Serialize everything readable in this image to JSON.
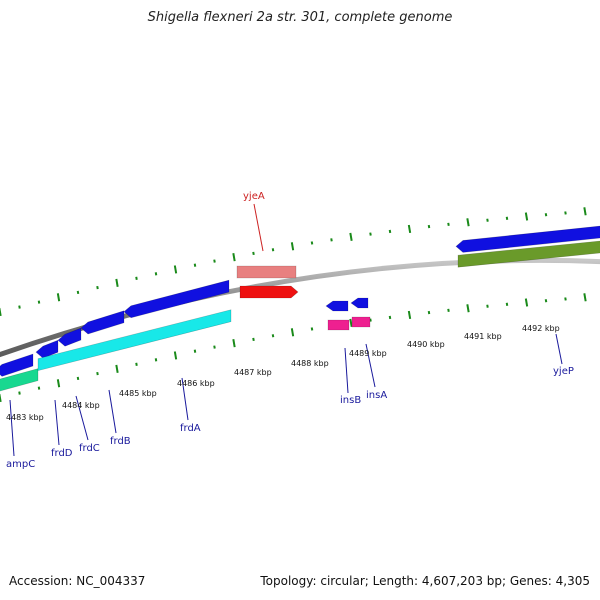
{
  "title": "Shigella flexneri 2a str. 301, complete genome",
  "footer": {
    "accession": "Accession: NC_004337",
    "summary": "Topology: circular; Length: 4,607,203 bp; Genes: 4,305"
  },
  "colors": {
    "backbone": "#8a8a8a",
    "cds": "#1010e0",
    "cds_alt": "#18e8e8",
    "cds_green": "#18d890",
    "cds_olive": "#6a9a2a",
    "rna_light": "#e88080",
    "rna": "#ee1111",
    "magenta": "#ee2090",
    "ticks": "#1a8a1a",
    "label_blue": "#1a1a9c",
    "label_red": "#cc2222"
  },
  "scale_labels": [
    "4483 kbp",
    "4484 kbp",
    "4485 kbp",
    "4486 kbp",
    "4487 kbp",
    "4488 kbp",
    "4489 kbp",
    "4490 kbp",
    "4491 kbp",
    "4492 kbp"
  ],
  "gene_labels": [
    {
      "name": "ampC",
      "color": "blue"
    },
    {
      "name": "frdD",
      "color": "blue"
    },
    {
      "name": "frdC",
      "color": "blue"
    },
    {
      "name": "frdB",
      "color": "blue"
    },
    {
      "name": "frdA",
      "color": "blue"
    },
    {
      "name": "insB",
      "color": "blue"
    },
    {
      "name": "insA",
      "color": "blue"
    },
    {
      "name": "yjeP",
      "color": "blue"
    },
    {
      "name": "yjeA",
      "color": "red"
    }
  ]
}
